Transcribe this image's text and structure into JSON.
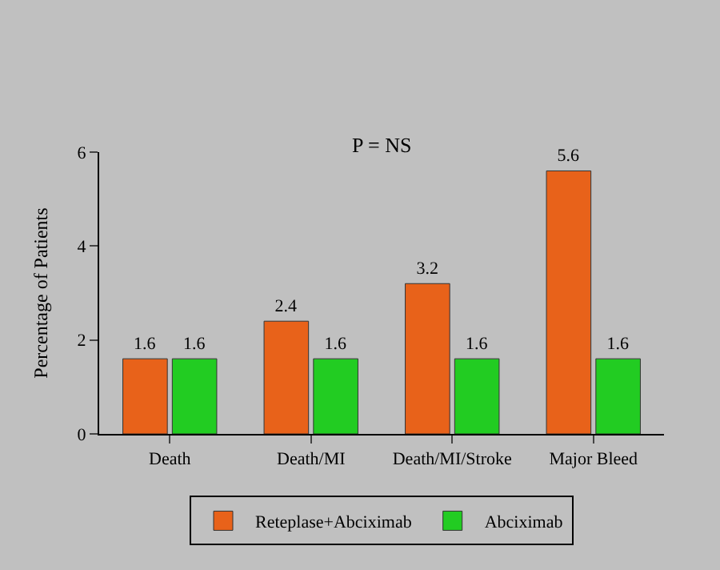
{
  "chart_data": {
    "type": "bar",
    "ylabel": "Percentage of Patients",
    "annotations": [
      "P = NS"
    ],
    "categories": [
      "Death",
      "Death/MI",
      "Death/MI/Stroke",
      "Major Bleed"
    ],
    "series": [
      {
        "name": "Reteplase+Abciximab",
        "color": "#e8621a",
        "values": [
          1.6,
          2.4,
          3.2,
          5.6
        ]
      },
      {
        "name": "Abciximab",
        "color": "#22cc22",
        "values": [
          1.6,
          1.6,
          1.6,
          1.6
        ]
      }
    ],
    "ylim": [
      0,
      6
    ],
    "yticks": [
      0,
      2,
      4,
      6
    ],
    "data_labels": true,
    "grid": false,
    "legend": "bottom"
  }
}
